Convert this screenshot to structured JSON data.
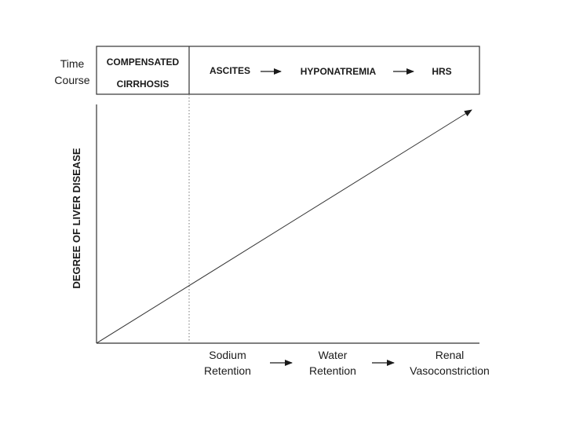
{
  "time_course_label": [
    "Time",
    "Course"
  ],
  "stages": {
    "compensated": [
      "COMPENSATED",
      "CIRRHOSIS"
    ],
    "ascites": "ASCITES",
    "hyponatremia": "HYPONATREMIA",
    "hrs": "HRS"
  },
  "y_axis_label": "DEGREE OF LIVER DISEASE",
  "bottom_steps": {
    "sodium": [
      "Sodium",
      "Retention"
    ],
    "water": [
      "Water",
      "Retention"
    ],
    "renal": [
      "Renal",
      "Vasoconstriction"
    ]
  }
}
